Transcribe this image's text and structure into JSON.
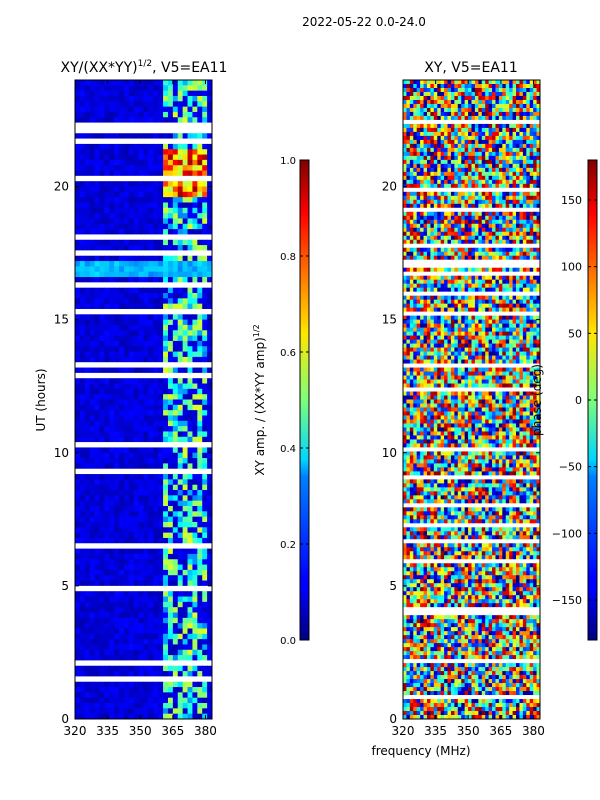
{
  "figure": {
    "suptitle": "2022-05-22 0.0-24.0",
    "xlabel": "frequency (MHz)"
  },
  "chart_data": [
    {
      "type": "heatmap",
      "title_main": "XY/(XX*YY)",
      "title_sup": "1/2",
      "title_rest": ", V5=EA11",
      "ylabel": "UT (hours)",
      "xlim": [
        320,
        383
      ],
      "ylim": [
        0,
        24
      ],
      "xticks": [
        320,
        335,
        350,
        365,
        380
      ],
      "yticks": [
        0,
        5,
        10,
        15,
        20
      ],
      "colorbar": {
        "label_main": "XY amp. / (XX*YY amp)",
        "label_sup": "1/2",
        "vmin": 0.0,
        "vmax": 1.0,
        "ticks": [
          "0.0",
          "0.2",
          "0.4",
          "0.6",
          "0.8",
          "1.0"
        ],
        "tick_values": [
          0.0,
          0.2,
          0.4,
          0.6,
          0.8,
          1.0
        ]
      }
    },
    {
      "type": "heatmap",
      "title": "XY, V5=EA11",
      "xlim": [
        320,
        383
      ],
      "ylim": [
        0,
        24
      ],
      "xticks": [
        320,
        335,
        350,
        365,
        380
      ],
      "yticks": [
        0,
        5,
        10,
        15,
        20
      ],
      "colorbar": {
        "label": "phase (deg)",
        "vmin": -180,
        "vmax": 180,
        "ticks": [
          "−150",
          "−100",
          "−50",
          "0",
          "50",
          "100",
          "150"
        ],
        "tick_values": [
          -150,
          -100,
          -50,
          0,
          50,
          100,
          150
        ]
      }
    }
  ]
}
